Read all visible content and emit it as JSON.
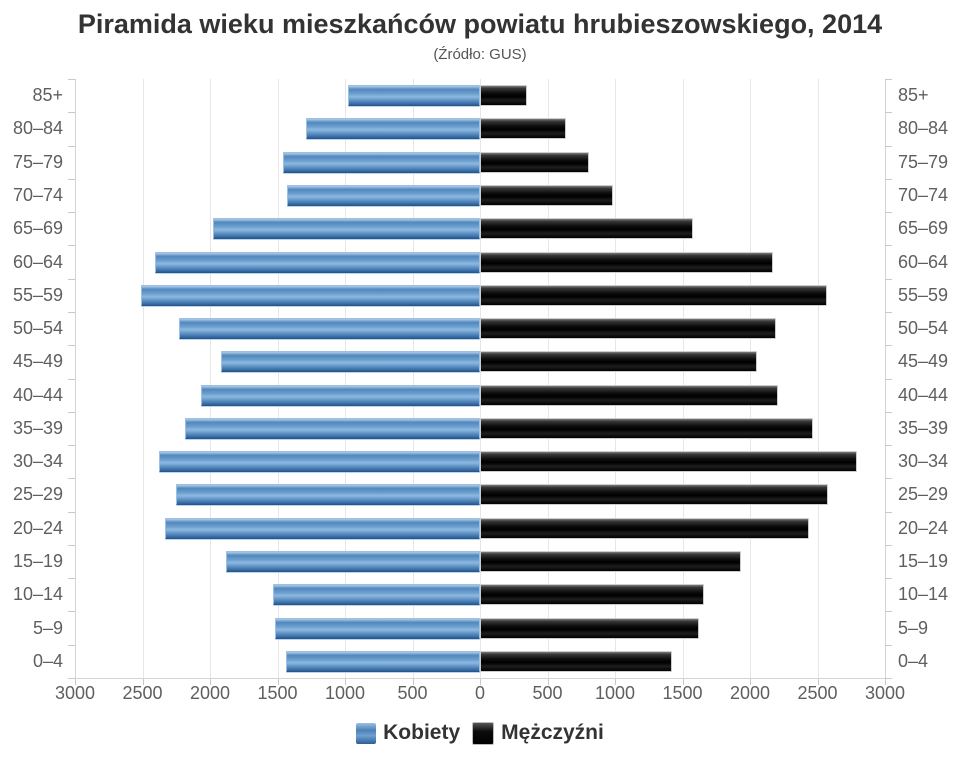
{
  "title": "Piramida wieku mieszkańców powiatu hrubieszowskiego, 2014",
  "subtitle": "(Źródło: GUS)",
  "legend": {
    "women": "Kobiety",
    "men": "Mężczyźni"
  },
  "colors": {
    "women_bar": "#5287bd",
    "men_bar": "#0c0c0c",
    "grid": "#e6e6e6",
    "axis": "#d4d4d4",
    "label_text": "#5f5f5f",
    "title_text": "#333333"
  },
  "chart_data": {
    "type": "bar",
    "variant": "population-pyramid",
    "orientation": "horizontal",
    "grid": true,
    "legend_position": "bottom",
    "xlim_per_side": [
      0,
      3000
    ],
    "x_tick_interval": 500,
    "x_tick_labels": [
      "3000",
      "2500",
      "2000",
      "1500",
      "1000",
      "500",
      "0",
      "500",
      "1000",
      "1500",
      "2000",
      "2500",
      "3000"
    ],
    "categories": [
      "85+",
      "80–84",
      "75–79",
      "70–74",
      "65–69",
      "60–64",
      "55–59",
      "50–54",
      "45–49",
      "40–44",
      "35–39",
      "30–34",
      "25–29",
      "20–24",
      "15–19",
      "10–14",
      "5–9",
      "0–4"
    ],
    "series": [
      {
        "name": "Kobiety",
        "side": "left",
        "color": "#5287bd",
        "values": [
          980,
          1290,
          1460,
          1430,
          1980,
          2410,
          2510,
          2230,
          1920,
          2070,
          2185,
          2375,
          2250,
          2330,
          1880,
          1530,
          1520,
          1440
        ]
      },
      {
        "name": "Mężczyźni",
        "side": "right",
        "color": "#0c0c0c",
        "values": [
          350,
          640,
          805,
          985,
          1575,
          2170,
          2570,
          2195,
          2050,
          2205,
          2470,
          2790,
          2575,
          2440,
          1935,
          1660,
          1620,
          1420
        ]
      }
    ]
  }
}
